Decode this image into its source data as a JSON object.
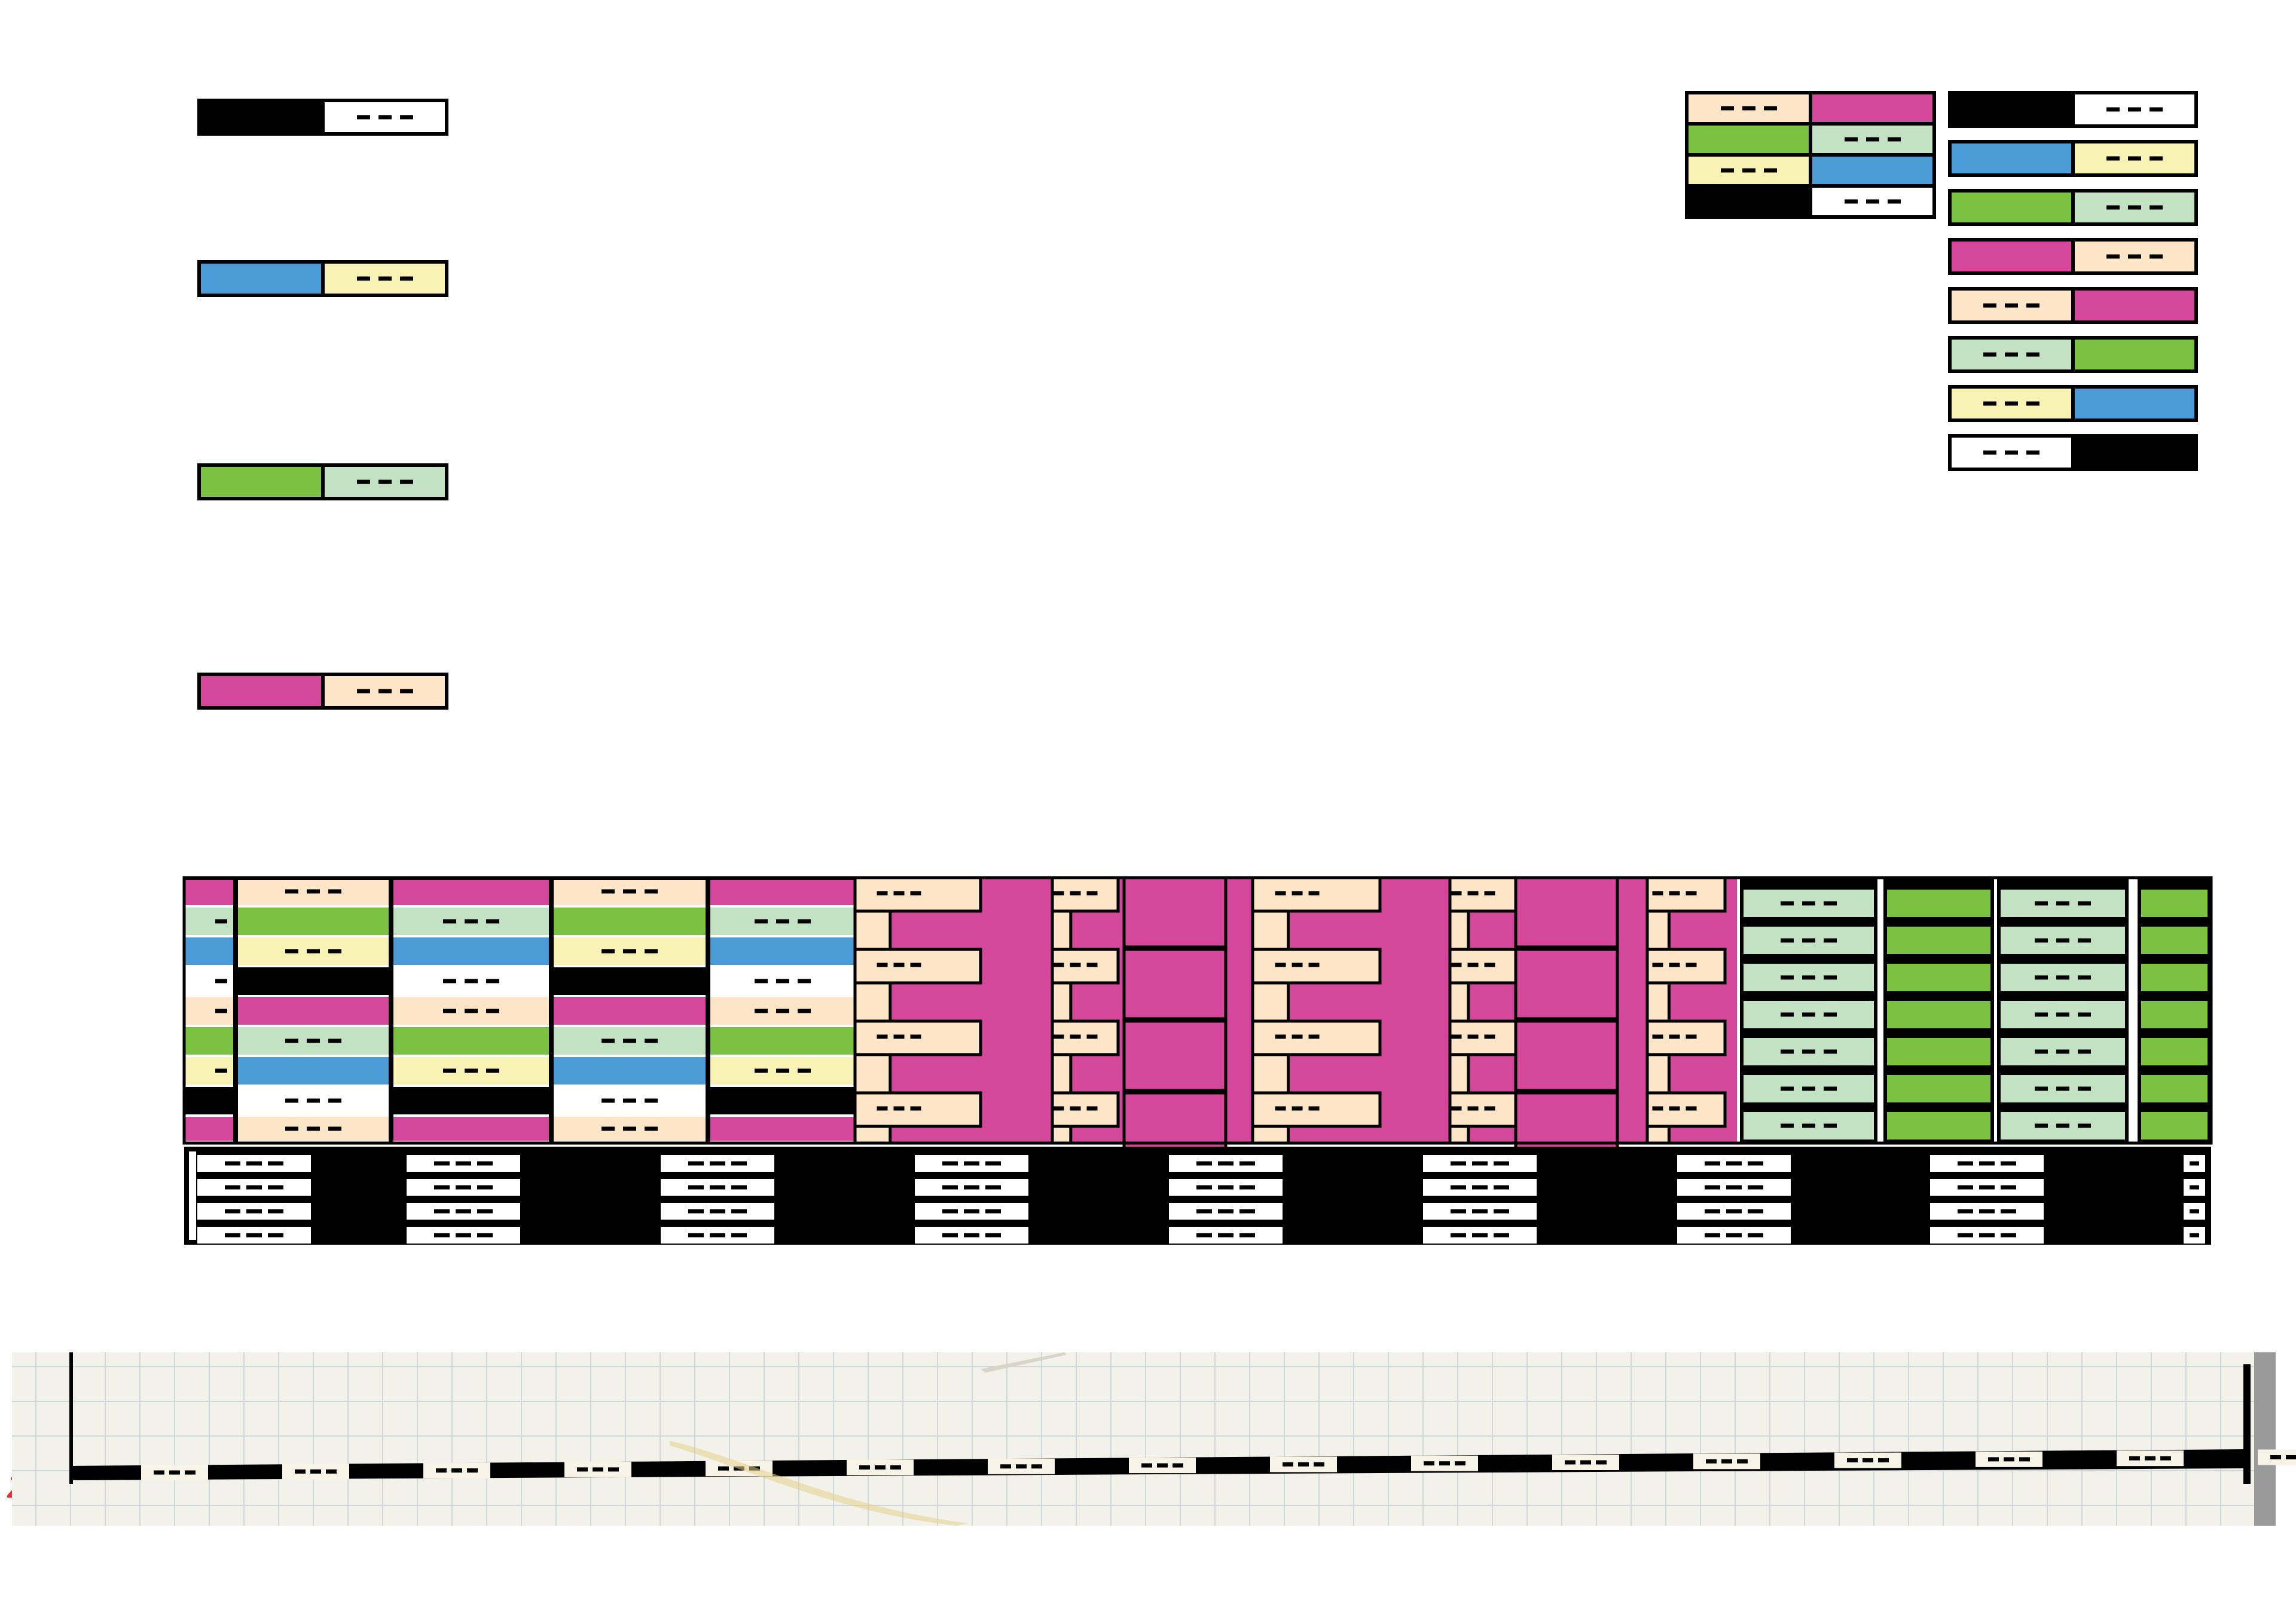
{
  "colors": {
    "black": "#000000",
    "white": "#ffffff",
    "blue": "#4a9bd6",
    "pale_yellow": "#f8f3b4",
    "green": "#7bc142",
    "pale_green": "#c3e2c4",
    "magenta": "#d5479b",
    "peach": "#fde6c8",
    "paper": "#f2f1ea",
    "grid_line": "#cfd6dc",
    "margin_mark": "#e0323c"
  },
  "legend_left": [
    {
      "name": "legend-black-white",
      "solid": "black",
      "dashed": "white"
    },
    {
      "name": "legend-blue-yellow",
      "solid": "blue",
      "dashed": "pale_yellow"
    },
    {
      "name": "legend-green-palegreen",
      "solid": "green",
      "dashed": "pale_green"
    },
    {
      "name": "legend-magenta-peach",
      "solid": "magenta",
      "dashed": "peach"
    }
  ],
  "legend_right": [
    {
      "solid_first": true,
      "solid": "black",
      "dashed": "white"
    },
    {
      "solid_first": true,
      "solid": "blue",
      "dashed": "pale_yellow"
    },
    {
      "solid_first": true,
      "solid": "green",
      "dashed": "pale_green"
    },
    {
      "solid_first": true,
      "solid": "magenta",
      "dashed": "peach"
    },
    {
      "solid_first": false,
      "solid": "magenta",
      "dashed": "peach"
    },
    {
      "solid_first": false,
      "solid": "green",
      "dashed": "pale_green"
    },
    {
      "solid_first": false,
      "solid": "blue",
      "dashed": "pale_yellow"
    },
    {
      "solid_first": false,
      "solid": "black",
      "dashed": "white"
    }
  ],
  "legend_stack": [
    {
      "left": "peach",
      "left_dashed": true,
      "right": "magenta",
      "right_dashed": false
    },
    {
      "left": "green",
      "left_dashed": false,
      "right": "pale_green",
      "right_dashed": true
    },
    {
      "left": "pale_yellow",
      "left_dashed": true,
      "right": "blue",
      "right_dashed": false
    },
    {
      "left": "black",
      "left_dashed": false,
      "right": "white",
      "right_dashed": true
    }
  ],
  "band_sections": [
    {
      "name": "stacked-stripes-section",
      "pattern": "stripes"
    },
    {
      "name": "magenta-peach-zigzag-section",
      "pattern": "zigzag"
    },
    {
      "name": "green-stripes-section",
      "pattern": "green-ladder"
    },
    {
      "name": "black-white-border-section",
      "pattern": "black-border"
    }
  ],
  "scan": {
    "name": "graph-paper-scan",
    "margin_mark": "z"
  }
}
